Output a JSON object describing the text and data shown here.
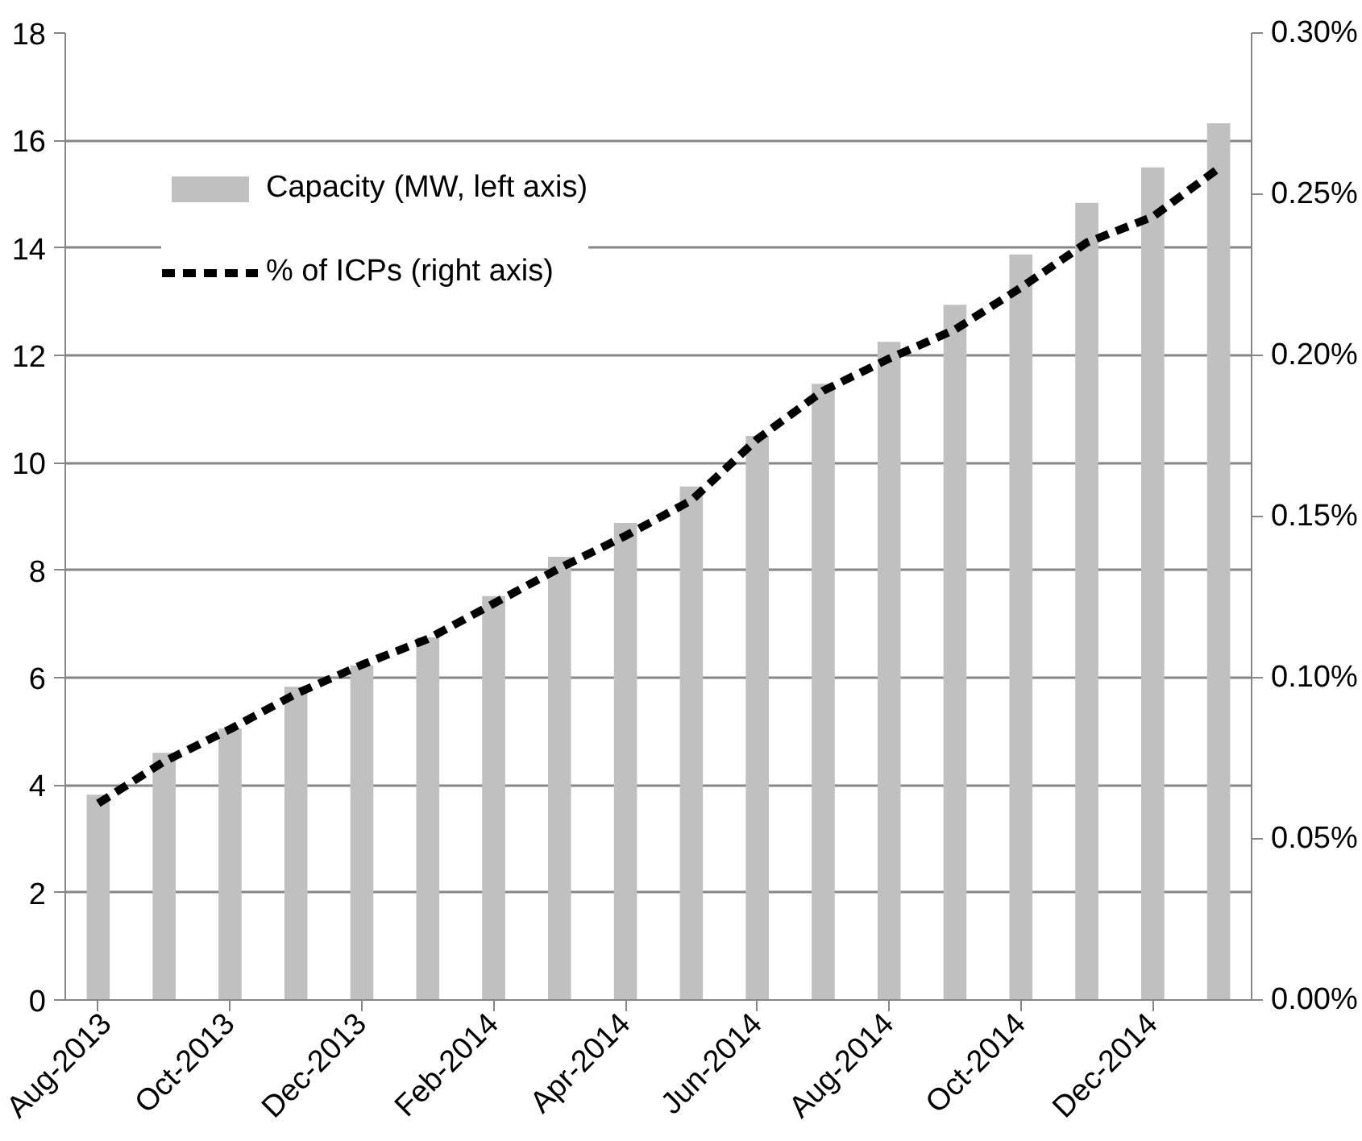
{
  "chart_data": {
    "type": "bar",
    "categories": [
      "Aug-2013",
      null,
      "Oct-2013",
      null,
      "Dec-2013",
      null,
      "Feb-2014",
      null,
      "Apr-2014",
      null,
      "Jun-2014",
      null,
      "Aug-2014",
      null,
      "Oct-2014",
      null,
      "Dec-2014",
      null
    ],
    "series": [
      {
        "name": "Capacity (MW, left axis)",
        "color": "#c0c0c0",
        "values": [
          3.82,
          4.6,
          5.05,
          5.83,
          6.23,
          6.75,
          7.52,
          8.25,
          8.88,
          9.56,
          10.5,
          11.47,
          12.25,
          12.94,
          13.88,
          14.84,
          15.5,
          16.32
        ]
      },
      {
        "name": "% of ICPs (right axis)",
        "type": "line",
        "axis": "y2",
        "color": "#000000",
        "line_style": "dashed",
        "values": [
          0.061,
          0.074,
          0.084,
          0.095,
          0.104,
          0.112,
          0.123,
          0.134,
          0.144,
          0.155,
          0.174,
          0.189,
          0.199,
          0.208,
          0.221,
          0.235,
          0.243,
          0.258
        ]
      }
    ],
    "ylim": [
      0,
      18
    ],
    "yticks": [
      0,
      2,
      4,
      6,
      8,
      10,
      12,
      14,
      16,
      18
    ],
    "y2lim": [
      0,
      0.3
    ],
    "y2ticks": [
      {
        "value": 0,
        "label": "0.00%"
      },
      {
        "value": 0.05,
        "label": "0.05%"
      },
      {
        "value": 0.1,
        "label": "0.10%"
      },
      {
        "value": 0.15,
        "label": "0.15%"
      },
      {
        "value": 0.2,
        "label": "0.20%"
      },
      {
        "value": 0.25,
        "label": "0.25%"
      },
      {
        "value": 0.3,
        "label": "0.30%"
      }
    ],
    "grid": "y",
    "legend": "top left"
  }
}
